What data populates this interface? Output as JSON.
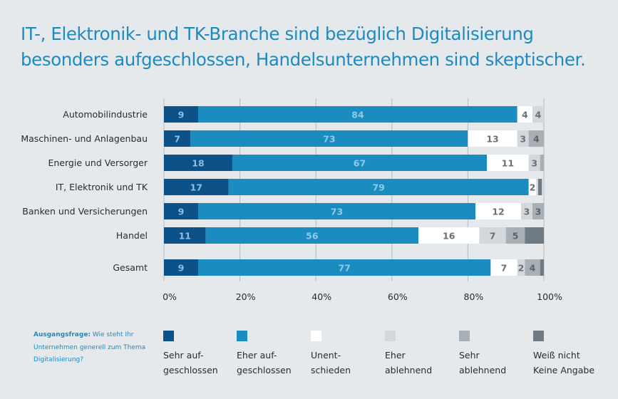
{
  "chart_data": {
    "type": "bar",
    "orientation": "horizontal",
    "stacked": true,
    "title": "IT-, Elektronik- und TK-Branche sind bezüglich Digitalisierung besonders aufgeschlossen, Handelsunternehmen sind skeptischer.",
    "xlabel": "",
    "ylabel": "",
    "xlim": [
      0,
      100
    ],
    "x_ticks": [
      "0%",
      "20%",
      "40%",
      "60%",
      "80%",
      "100%"
    ],
    "grid": true,
    "legend_position": "bottom",
    "categories": [
      "Automobilindustrie",
      "Maschinen- und Anlagenbau",
      "Energie und Versorger",
      "IT, Elektronik und TK",
      "Banken und Versicherungen",
      "Handel",
      "Gesamt"
    ],
    "series": [
      {
        "name": "Sehr aufgeschlossen",
        "color": "#0c5288",
        "label_color": "#8fbfe0",
        "values": [
          9,
          7,
          18,
          17,
          9,
          11,
          9
        ],
        "labels": [
          "9",
          "7",
          "18",
          "17",
          "9",
          "11",
          "9"
        ]
      },
      {
        "name": "Eher aufgeschlossen",
        "color": "#1a8cc0",
        "label_color": "#8fcbe8",
        "values": [
          84,
          73,
          67,
          79,
          73,
          56,
          77
        ],
        "labels": [
          "84",
          "73",
          "67",
          "79",
          "73",
          "56",
          "77"
        ]
      },
      {
        "name": "Unentschieden",
        "color": "#ffffff",
        "label_color": "#6b6f73",
        "values": [
          4,
          13,
          11,
          2,
          12,
          16,
          7
        ],
        "labels": [
          "4",
          "13",
          "11",
          "2",
          "12",
          "16",
          "7"
        ]
      },
      {
        "name": "Eher ablehnend",
        "color": "#d3d8dc",
        "label_color": "#6b6f73",
        "values": [
          4,
          3,
          3,
          0.5,
          3,
          7,
          2
        ],
        "labels": [
          "4",
          "3",
          "3",
          "",
          "3",
          "7",
          "2"
        ]
      },
      {
        "name": "Sehr ablehnend",
        "color": "#a8b0b6",
        "label_color": "#5d6268",
        "values": [
          0,
          4,
          1,
          0,
          3,
          5,
          4
        ],
        "labels": [
          "",
          "4",
          "",
          "",
          "3",
          "5",
          "4"
        ]
      },
      {
        "name": "Weiß nicht / Keine Angabe",
        "color": "#6f7a83",
        "label_color": "#5d6268",
        "values": [
          0,
          0.5,
          0,
          1,
          0.5,
          5,
          1
        ],
        "labels": [
          "",
          "",
          "",
          "",
          "",
          "",
          ""
        ]
      }
    ]
  },
  "question": {
    "label": "Ausgangsfrage:",
    "text": " Wie steht Ihr Unternehmen generell zum Thema Digitalisierung?"
  },
  "legend": [
    {
      "text": "Sehr auf-\ngeschlossen",
      "color": "#0c5288"
    },
    {
      "text": "Eher auf-\ngeschlossen",
      "color": "#1a8cc0"
    },
    {
      "text": "Unent-\nschieden",
      "color": "#ffffff"
    },
    {
      "text": "Eher\nablehnend",
      "color": "#d3d8dc"
    },
    {
      "text": "Sehr\nablehnend",
      "color": "#a8b0b6"
    },
    {
      "text": "Weiß nicht\nKeine Angabe",
      "color": "#6f7a83"
    }
  ]
}
